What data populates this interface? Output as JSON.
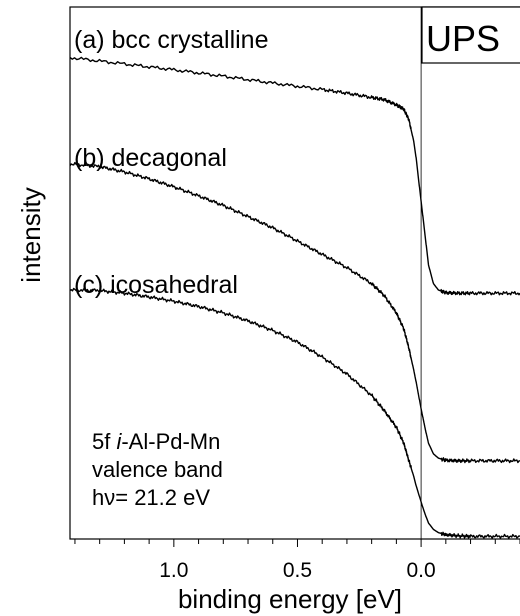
{
  "chart_data": {
    "type": "line",
    "xlabel": "binding energy [eV]",
    "ylabel": "intensity",
    "x_reversed": true,
    "xlim": [
      1.42,
      -0.4
    ],
    "ylim": [
      0,
      1
    ],
    "xticks": [
      1.0,
      0.5,
      0.0
    ],
    "xtick_labels": [
      "1.0",
      "0.5",
      "0.0"
    ],
    "reference_line": {
      "x": 0.0,
      "label": ""
    },
    "tag": "UPS",
    "annotation": {
      "line1_prefix": "5f ",
      "line1_italic": "i",
      "line1_suffix": "-Al-Pd-Mn",
      "line2": "valence band",
      "line3": "hν= 21.2 eV"
    },
    "series": [
      {
        "name": "(a) bcc crystalline",
        "x": [
          1.42,
          1.2,
          1.0,
          0.8,
          0.6,
          0.4,
          0.3,
          0.2,
          0.15,
          0.1,
          0.07,
          0.05,
          0.03,
          0.02,
          0.01,
          0.0,
          -0.01,
          -0.02,
          -0.03,
          -0.05,
          -0.07,
          -0.1,
          -0.15,
          -0.2,
          -0.3,
          -0.4
        ],
        "y": [
          0.905,
          0.893,
          0.882,
          0.87,
          0.857,
          0.845,
          0.838,
          0.83,
          0.826,
          0.816,
          0.808,
          0.789,
          0.748,
          0.716,
          0.675,
          0.635,
          0.595,
          0.555,
          0.515,
          0.48,
          0.468,
          0.463,
          0.462,
          0.462,
          0.462,
          0.462
        ]
      },
      {
        "name": "(b) decagonal",
        "x": [
          1.42,
          1.3,
          1.2,
          1.1,
          1.0,
          0.9,
          0.8,
          0.7,
          0.6,
          0.5,
          0.4,
          0.3,
          0.2,
          0.15,
          0.1,
          0.07,
          0.05,
          0.03,
          0.02,
          0.01,
          0.0,
          -0.01,
          -0.02,
          -0.03,
          -0.05,
          -0.07,
          -0.1,
          -0.15,
          -0.2,
          -0.3,
          -0.4
        ],
        "y": [
          0.705,
          0.7,
          0.69,
          0.677,
          0.662,
          0.645,
          0.627,
          0.606,
          0.585,
          0.56,
          0.535,
          0.51,
          0.48,
          0.458,
          0.425,
          0.395,
          0.36,
          0.318,
          0.295,
          0.27,
          0.245,
          0.222,
          0.2,
          0.18,
          0.16,
          0.152,
          0.148,
          0.147,
          0.147,
          0.147,
          0.147
        ]
      },
      {
        "name": "(c) icosahedral",
        "x": [
          1.42,
          1.3,
          1.2,
          1.1,
          1.0,
          0.9,
          0.8,
          0.7,
          0.6,
          0.5,
          0.4,
          0.3,
          0.2,
          0.15,
          0.1,
          0.07,
          0.05,
          0.03,
          0.02,
          0.01,
          0.0,
          -0.01,
          -0.02,
          -0.03,
          -0.05,
          -0.07,
          -0.1,
          -0.15,
          -0.2,
          -0.3,
          -0.4
        ],
        "y": [
          0.468,
          0.467,
          0.462,
          0.455,
          0.447,
          0.437,
          0.425,
          0.41,
          0.392,
          0.37,
          0.342,
          0.31,
          0.27,
          0.242,
          0.21,
          0.18,
          0.148,
          0.118,
          0.1,
          0.085,
          0.07,
          0.055,
          0.042,
          0.03,
          0.018,
          0.012,
          0.008,
          0.006,
          0.005,
          0.005,
          0.005
        ]
      }
    ]
  }
}
